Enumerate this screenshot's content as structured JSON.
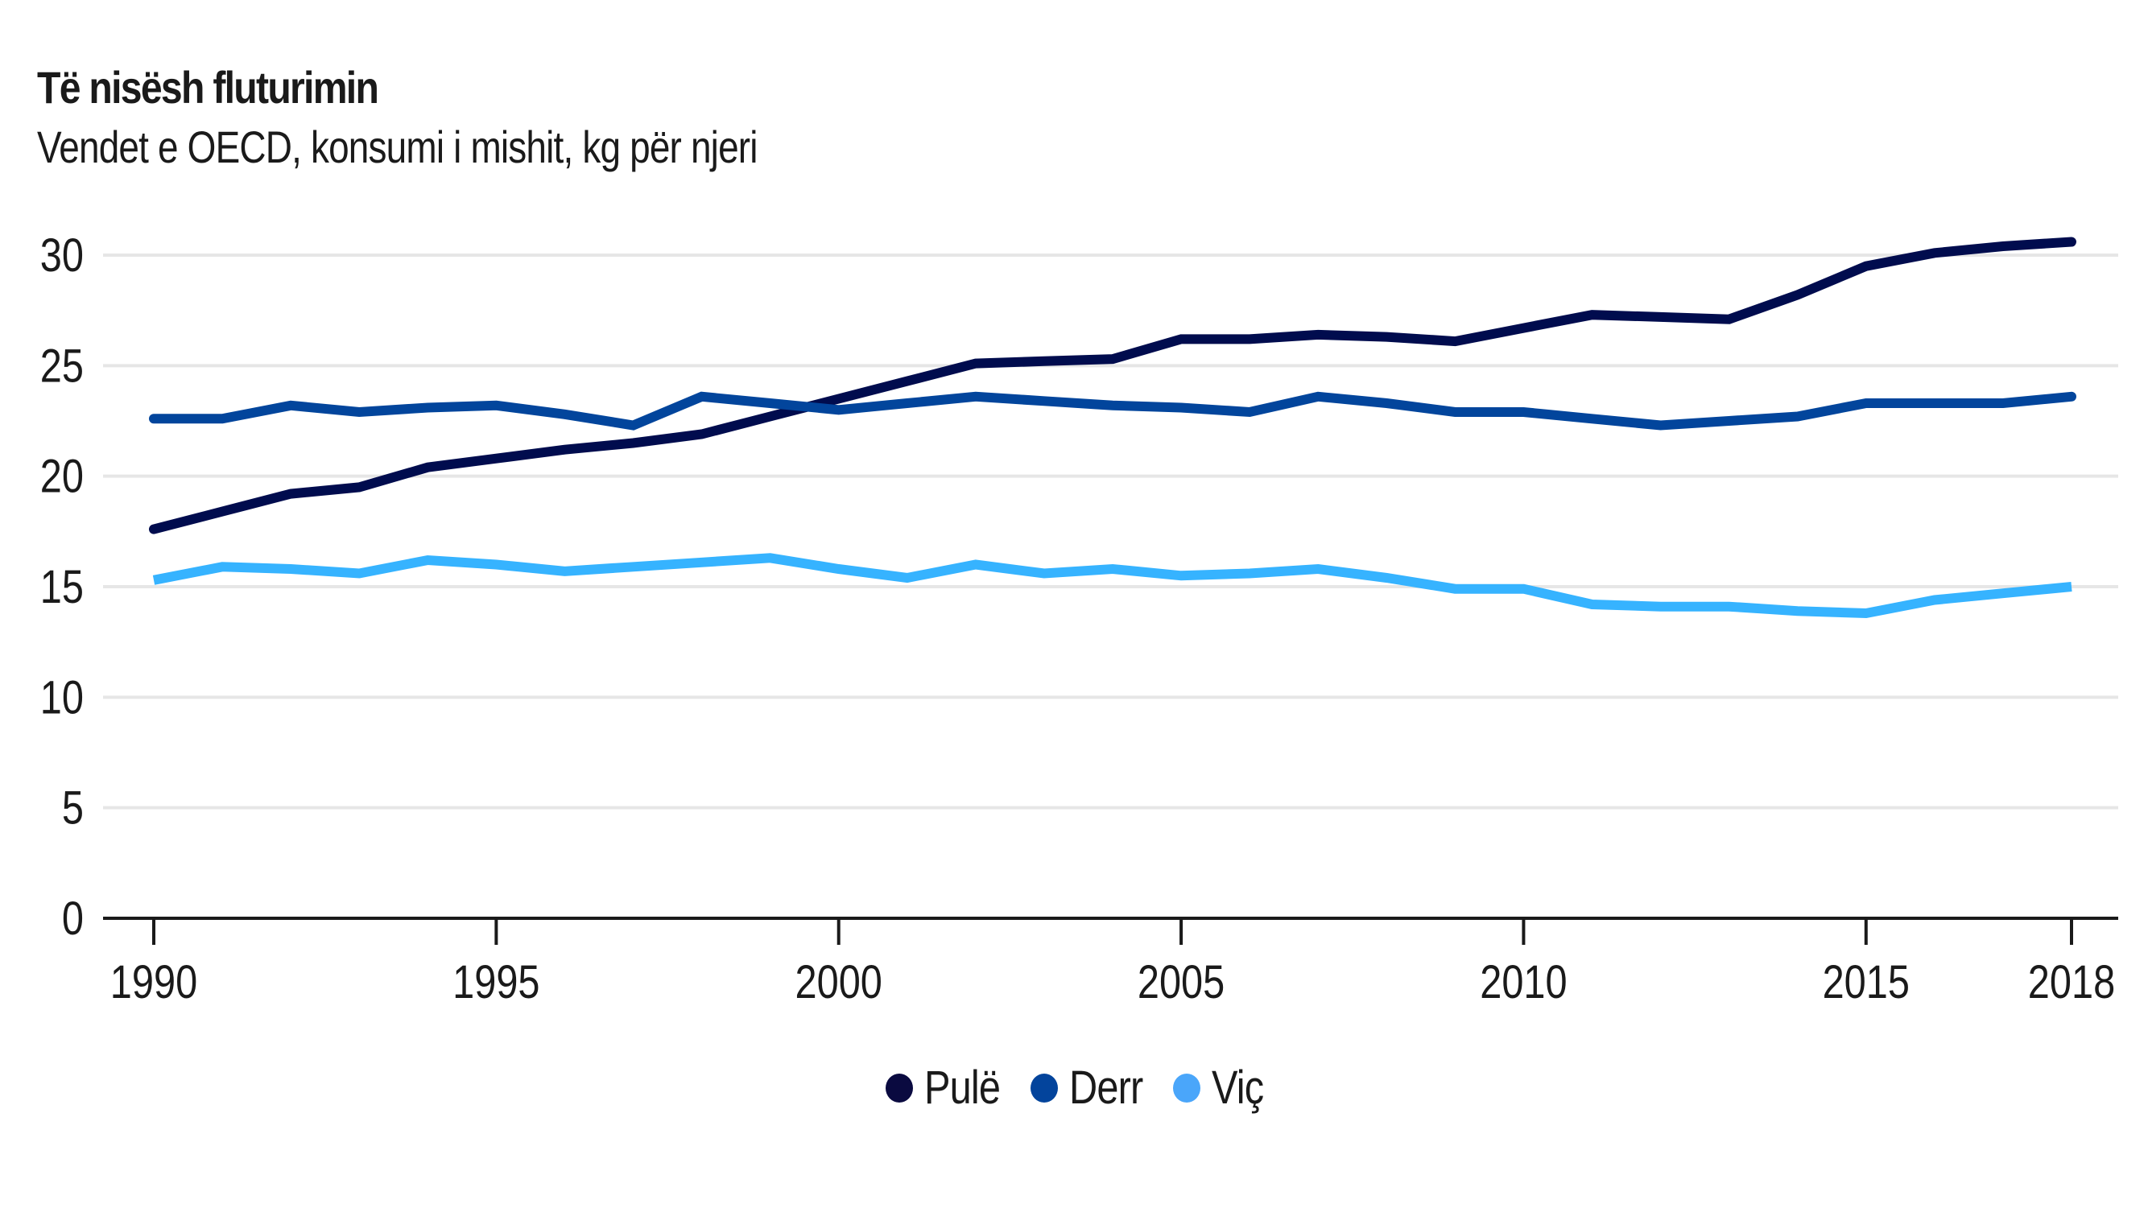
{
  "header": {
    "title": "Të nisësh fluturimin",
    "subtitle": "Vendet e OECD, konsumi i mishit, kg për njeri"
  },
  "legend": [
    {
      "label": "Pulë",
      "color": "#0a0a40"
    },
    {
      "label": "Derr",
      "color": "#03449c"
    },
    {
      "label": "Viç",
      "color": "#4aa6fa"
    }
  ],
  "chart_data": {
    "type": "line",
    "title": "Të nisësh fluturimin",
    "subtitle": "Vendet e OECD, konsumi i mishit, kg për njeri",
    "xlabel": "",
    "ylabel": "",
    "x": [
      1990,
      1991,
      1992,
      1993,
      1994,
      1995,
      1996,
      1997,
      1998,
      1999,
      2000,
      2001,
      2002,
      2003,
      2004,
      2005,
      2006,
      2007,
      2008,
      2009,
      2010,
      2011,
      2012,
      2013,
      2014,
      2015,
      2016,
      2017,
      2018
    ],
    "x_ticks": [
      "1990",
      "1995",
      "2000",
      "2005",
      "2010",
      "2015",
      "2018"
    ],
    "x_tick_values": [
      1990,
      1995,
      2000,
      2005,
      2010,
      2015,
      2018
    ],
    "y_ticks": [
      "0",
      "5",
      "10",
      "15",
      "20",
      "25",
      "30"
    ],
    "y_tick_values": [
      0,
      5,
      10,
      15,
      20,
      25,
      30
    ],
    "ylim": [
      0,
      30
    ],
    "xlim": [
      1990,
      2018
    ],
    "grid": true,
    "legend_position": "bottom-center",
    "series": [
      {
        "name": "Pulë",
        "color": "#000c4e",
        "values": [
          17.6,
          18.4,
          19.2,
          19.5,
          20.4,
          20.8,
          21.2,
          21.5,
          21.9,
          22.7,
          23.5,
          24.3,
          25.1,
          25.2,
          25.3,
          26.2,
          26.2,
          26.4,
          26.3,
          26.1,
          26.7,
          27.3,
          27.2,
          27.1,
          28.2,
          29.5,
          30.1,
          30.4,
          30.6
        ]
      },
      {
        "name": "Derr",
        "color": "#02459c",
        "values": [
          22.6,
          22.6,
          23.2,
          22.9,
          23.1,
          23.2,
          22.8,
          22.3,
          23.6,
          23.3,
          23.0,
          23.3,
          23.6,
          23.4,
          23.2,
          23.1,
          22.9,
          23.6,
          23.3,
          22.9,
          22.9,
          22.6,
          22.3,
          22.5,
          22.7,
          23.3,
          23.3,
          23.3,
          23.6
        ]
      },
      {
        "name": "Viç",
        "color": "#36b3ff",
        "values": [
          15.3,
          15.9,
          15.8,
          15.6,
          16.2,
          16.0,
          15.7,
          15.9,
          16.1,
          16.3,
          15.8,
          15.4,
          16.0,
          15.6,
          15.8,
          15.5,
          15.6,
          15.8,
          15.4,
          14.9,
          14.9,
          14.2,
          14.1,
          14.1,
          13.9,
          13.8,
          14.4,
          14.7,
          15.0
        ]
      }
    ]
  }
}
